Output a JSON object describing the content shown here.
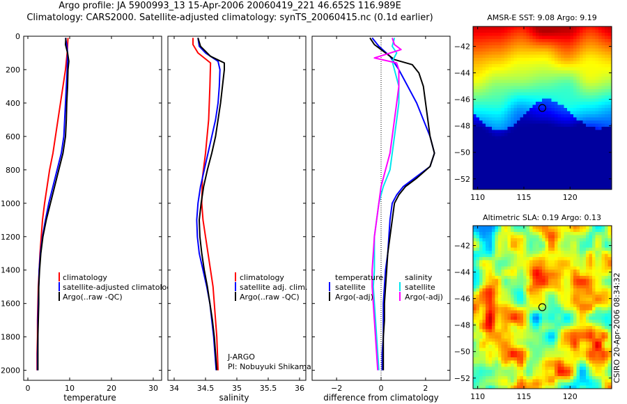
{
  "header": {
    "line1": "Argo profile: JA 5900993_13 15-Apr-2006 20060419_221 46.652S 116.989E",
    "line2": "Climatology: CARS2000. Satellite-adjusted climatology: synTS_20060415.nc (0.1d earlier)"
  },
  "side_label": "CSIRO 20-Apr-2006 08:34:32",
  "colors": {
    "climatology": "#ff0000",
    "satellite": "#0000ff",
    "argo": "#000000",
    "temp_diff_satellite": "#0000ff",
    "temp_diff_argo": "#000000",
    "sal_diff_satellite": "#00e5ee",
    "sal_diff_argo": "#ff00ff"
  },
  "chart_data": [
    {
      "type": "line",
      "xlabel": "temperature",
      "ylabel": "",
      "xlim": [
        -1,
        32
      ],
      "ylim": [
        2060,
        0
      ],
      "y_reversed": true,
      "xticks": [
        0,
        10,
        20,
        30
      ],
      "yticks": [
        0,
        200,
        400,
        600,
        800,
        1000,
        1200,
        1400,
        1600,
        1800,
        2000
      ],
      "legend": {
        "position": "lower-right",
        "entries": [
          "climatology",
          "satellite-adjusted climatology",
          "Argo(..raw -QC)"
        ]
      },
      "series": [
        {
          "name": "climatology",
          "points": [
            [
              9.6,
              10
            ],
            [
              9.4,
              100
            ],
            [
              9.0,
              200
            ],
            [
              8.4,
              300
            ],
            [
              7.8,
              400
            ],
            [
              7.2,
              500
            ],
            [
              6.6,
              600
            ],
            [
              6.0,
              700
            ],
            [
              5.2,
              800
            ],
            [
              4.6,
              900
            ],
            [
              4.0,
              1000
            ],
            [
              3.5,
              1100
            ],
            [
              3.2,
              1200
            ],
            [
              2.9,
              1300
            ],
            [
              2.7,
              1400
            ],
            [
              2.5,
              1500
            ],
            [
              2.4,
              1600
            ],
            [
              2.3,
              1700
            ],
            [
              2.3,
              1800
            ],
            [
              2.2,
              1900
            ],
            [
              2.2,
              2000
            ]
          ]
        },
        {
          "name": "satellite-adjusted climatology",
          "points": [
            [
              9.0,
              10
            ],
            [
              9.3,
              50
            ],
            [
              9.5,
              100
            ],
            [
              9.4,
              200
            ],
            [
              9.2,
              300
            ],
            [
              9.0,
              400
            ],
            [
              8.8,
              500
            ],
            [
              8.6,
              600
            ],
            [
              8.0,
              700
            ],
            [
              7.0,
              800
            ],
            [
              6.0,
              900
            ],
            [
              5.0,
              1000
            ],
            [
              4.2,
              1100
            ],
            [
              3.5,
              1200
            ],
            [
              3.0,
              1300
            ],
            [
              2.7,
              1400
            ],
            [
              2.6,
              1500
            ],
            [
              2.5,
              1600
            ],
            [
              2.4,
              1700
            ],
            [
              2.4,
              1800
            ],
            [
              2.3,
              1900
            ],
            [
              2.3,
              2000
            ]
          ]
        },
        {
          "name": "Argo(..raw -QC)",
          "points": [
            [
              9.1,
              10
            ],
            [
              9.0,
              50
            ],
            [
              9.5,
              100
            ],
            [
              9.8,
              150
            ],
            [
              9.6,
              200
            ],
            [
              9.5,
              300
            ],
            [
              9.3,
              400
            ],
            [
              9.2,
              500
            ],
            [
              9.0,
              600
            ],
            [
              8.4,
              700
            ],
            [
              7.4,
              800
            ],
            [
              6.4,
              900
            ],
            [
              5.4,
              1000
            ],
            [
              4.4,
              1100
            ],
            [
              3.6,
              1200
            ],
            [
              3.1,
              1300
            ],
            [
              2.8,
              1400
            ],
            [
              2.6,
              1500
            ],
            [
              2.6,
              1600
            ],
            [
              2.5,
              1700
            ],
            [
              2.4,
              1800
            ],
            [
              2.4,
              1900
            ],
            [
              2.4,
              2000
            ]
          ]
        }
      ]
    },
    {
      "type": "line",
      "xlabel": "salinity",
      "ylabel": "",
      "xlim": [
        33.9,
        36.1
      ],
      "ylim": [
        2060,
        0
      ],
      "y_reversed": true,
      "xticks": [
        34,
        34.5,
        35,
        35.5,
        36
      ],
      "legend": {
        "position": "lower-right",
        "entries": [
          "climatology",
          "satellite adj. clim.",
          "Argo(..raw -QC)"
        ]
      },
      "annotation": [
        "J-ARGO",
        "PI: Nobuyuki Shikama"
      ],
      "series": [
        {
          "name": "climatology",
          "points": [
            [
              34.3,
              10
            ],
            [
              34.3,
              50
            ],
            [
              34.38,
              100
            ],
            [
              34.58,
              160
            ],
            [
              34.57,
              300
            ],
            [
              34.55,
              500
            ],
            [
              34.5,
              700
            ],
            [
              34.45,
              850
            ],
            [
              34.44,
              1000
            ],
            [
              34.46,
              1100
            ],
            [
              34.5,
              1200
            ],
            [
              34.54,
              1300
            ],
            [
              34.58,
              1400
            ],
            [
              34.62,
              1500
            ],
            [
              34.64,
              1600
            ],
            [
              34.66,
              1700
            ],
            [
              34.68,
              1800
            ],
            [
              34.69,
              1900
            ],
            [
              34.7,
              2000
            ]
          ]
        },
        {
          "name": "satellite adj. clim.",
          "points": [
            [
              34.38,
              10
            ],
            [
              34.4,
              60
            ],
            [
              34.5,
              100
            ],
            [
              34.7,
              150
            ],
            [
              34.73,
              200
            ],
            [
              34.72,
              300
            ],
            [
              34.7,
              400
            ],
            [
              34.66,
              500
            ],
            [
              34.6,
              600
            ],
            [
              34.54,
              700
            ],
            [
              34.48,
              800
            ],
            [
              34.42,
              900
            ],
            [
              34.38,
              1000
            ],
            [
              34.36,
              1100
            ],
            [
              34.37,
              1200
            ],
            [
              34.4,
              1300
            ],
            [
              34.46,
              1400
            ],
            [
              34.52,
              1500
            ],
            [
              34.57,
              1600
            ],
            [
              34.6,
              1700
            ],
            [
              34.63,
              1800
            ],
            [
              34.65,
              1900
            ],
            [
              34.67,
              2000
            ]
          ]
        },
        {
          "name": "Argo(..raw -QC)",
          "points": [
            [
              34.38,
              10
            ],
            [
              34.42,
              60
            ],
            [
              34.58,
              120
            ],
            [
              34.8,
              160
            ],
            [
              34.8,
              200
            ],
            [
              34.77,
              300
            ],
            [
              34.74,
              400
            ],
            [
              34.7,
              500
            ],
            [
              34.66,
              600
            ],
            [
              34.6,
              700
            ],
            [
              34.53,
              800
            ],
            [
              34.47,
              900
            ],
            [
              34.43,
              1000
            ],
            [
              34.4,
              1100
            ],
            [
              34.41,
              1200
            ],
            [
              34.44,
              1300
            ],
            [
              34.48,
              1400
            ],
            [
              34.53,
              1500
            ],
            [
              34.57,
              1600
            ],
            [
              34.61,
              1700
            ],
            [
              34.64,
              1800
            ],
            [
              34.66,
              1900
            ],
            [
              34.68,
              2000
            ]
          ]
        }
      ]
    },
    {
      "type": "line",
      "xlabel": "difference from climatology",
      "ylabel": "",
      "xlim": [
        -3.1,
        3.1
      ],
      "ylim": [
        2060,
        0
      ],
      "y_reversed": true,
      "xticks": [
        -2,
        0,
        2
      ],
      "zero_line": "dotted",
      "legend": {
        "position": "lower-center",
        "columns": [
          {
            "heading": "temperature",
            "entries": [
              "satellite",
              "Argo(-adj)"
            ]
          },
          {
            "heading": "salinity",
            "entries": [
              "satellite",
              "Argo(-adj)"
            ]
          }
        ]
      },
      "series": [
        {
          "name": "temperature satellite",
          "points": [
            [
              -0.4,
              10
            ],
            [
              -0.1,
              60
            ],
            [
              0.4,
              120
            ],
            [
              0.8,
              200
            ],
            [
              1.2,
              300
            ],
            [
              1.6,
              400
            ],
            [
              1.9,
              500
            ],
            [
              2.2,
              600
            ],
            [
              2.4,
              700
            ],
            [
              2.2,
              780
            ],
            [
              1.5,
              850
            ],
            [
              1.0,
              900
            ],
            [
              0.7,
              950
            ],
            [
              0.5,
              1000
            ],
            [
              0.4,
              1100
            ],
            [
              0.35,
              1200
            ],
            [
              0.3,
              1300
            ],
            [
              0.2,
              1400
            ],
            [
              0.15,
              1500
            ],
            [
              0.1,
              1600
            ],
            [
              0.1,
              1700
            ],
            [
              0.1,
              1800
            ],
            [
              0.05,
              1900
            ],
            [
              0.05,
              2000
            ]
          ]
        },
        {
          "name": "temperature Argo(-adj)",
          "points": [
            [
              -0.5,
              10
            ],
            [
              -0.3,
              50
            ],
            [
              0.2,
              100
            ],
            [
              0.6,
              140
            ],
            [
              1.4,
              170
            ],
            [
              1.7,
              220
            ],
            [
              1.9,
              300
            ],
            [
              2.0,
              400
            ],
            [
              2.1,
              500
            ],
            [
              2.2,
              600
            ],
            [
              2.4,
              700
            ],
            [
              2.2,
              780
            ],
            [
              1.6,
              850
            ],
            [
              1.1,
              900
            ],
            [
              0.8,
              950
            ],
            [
              0.6,
              1000
            ],
            [
              0.5,
              1100
            ],
            [
              0.4,
              1200
            ],
            [
              0.3,
              1300
            ],
            [
              0.25,
              1400
            ],
            [
              0.2,
              1500
            ],
            [
              0.15,
              1600
            ],
            [
              0.15,
              1700
            ],
            [
              0.1,
              1800
            ],
            [
              0.1,
              1900
            ],
            [
              0.1,
              2000
            ]
          ]
        },
        {
          "name": "salinity satellite",
          "points": [
            [
              0.6,
              10
            ],
            [
              0.5,
              60
            ],
            [
              0.7,
              100
            ],
            [
              0.5,
              150
            ],
            [
              0.6,
              200
            ],
            [
              0.8,
              300
            ],
            [
              0.8,
              400
            ],
            [
              0.7,
              500
            ],
            [
              0.6,
              600
            ],
            [
              0.5,
              700
            ],
            [
              0.4,
              800
            ],
            [
              0.1,
              900
            ],
            [
              -0.1,
              1000
            ],
            [
              -0.2,
              1100
            ],
            [
              -0.3,
              1200
            ],
            [
              -0.3,
              1300
            ],
            [
              -0.3,
              1400
            ],
            [
              -0.35,
              1500
            ],
            [
              -0.3,
              1600
            ],
            [
              -0.25,
              1700
            ],
            [
              -0.2,
              1800
            ],
            [
              -0.15,
              1900
            ],
            [
              -0.1,
              2000
            ]
          ]
        },
        {
          "name": "salinity Argo(-adj)",
          "points": [
            [
              0.5,
              10
            ],
            [
              0.6,
              50
            ],
            [
              0.9,
              80
            ],
            [
              -0.3,
              130
            ],
            [
              0.7,
              160
            ],
            [
              0.8,
              200
            ],
            [
              0.8,
              300
            ],
            [
              0.7,
              400
            ],
            [
              0.6,
              500
            ],
            [
              0.5,
              600
            ],
            [
              0.4,
              700
            ],
            [
              0.2,
              800
            ],
            [
              0.0,
              900
            ],
            [
              -0.1,
              1000
            ],
            [
              -0.2,
              1100
            ],
            [
              -0.3,
              1200
            ],
            [
              -0.35,
              1300
            ],
            [
              -0.4,
              1400
            ],
            [
              -0.4,
              1500
            ],
            [
              -0.35,
              1600
            ],
            [
              -0.3,
              1700
            ],
            [
              -0.25,
              1800
            ],
            [
              -0.2,
              1900
            ],
            [
              -0.15,
              2000
            ]
          ]
        }
      ]
    },
    {
      "type": "heatmap",
      "title": "AMSR-E SST: 9.08 Argo: 9.19",
      "xlim": [
        109.5,
        124.5
      ],
      "ylim": [
        -52.8,
        -40.5
      ],
      "xticks": [
        110,
        115,
        120
      ],
      "yticks": [
        -42,
        -44,
        -46,
        -48,
        -50,
        -52
      ],
      "marker": {
        "lon": 116.989,
        "lat": -46.652
      }
    },
    {
      "type": "heatmap",
      "title": "Altimetric SLA: 0.19 Argo: 0.13",
      "xlim": [
        109.5,
        124.5
      ],
      "ylim": [
        -52.8,
        -40.5
      ],
      "xticks": [
        110,
        115,
        120
      ],
      "yticks": [
        -42,
        -44,
        -46,
        -48,
        -50,
        -52
      ],
      "marker": {
        "lon": 116.989,
        "lat": -46.652
      }
    }
  ]
}
